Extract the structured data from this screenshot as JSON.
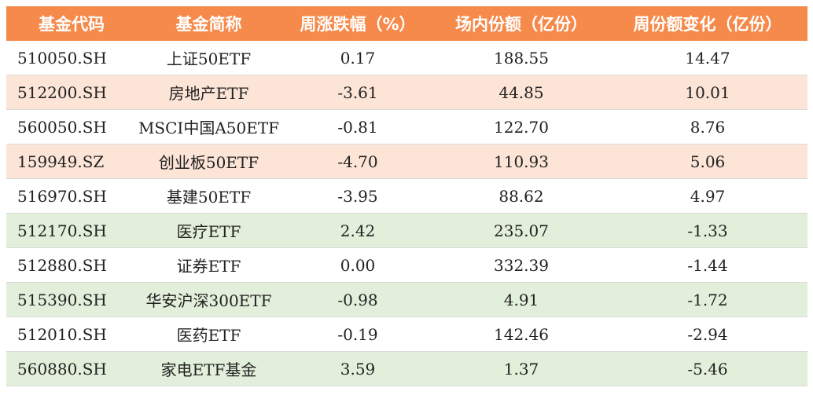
{
  "headers": [
    "基金代码",
    "基金简称",
    "周涨跌幅（%）",
    "场内份额（亿份）",
    "周份额变化（亿份）"
  ],
  "row_colors": {
    "white": "#ffffff",
    "pink": "#fce4d6",
    "green": "#e2efda",
    "header": "#f58a4b"
  },
  "rows": [
    {
      "code": "510050.SH",
      "name": "上证50ETF",
      "weekly_change": "0.17",
      "shares": "188.55",
      "share_change": "14.47",
      "style": "white"
    },
    {
      "code": "512200.SH",
      "name": "房地产ETF",
      "weekly_change": "-3.61",
      "shares": "44.85",
      "share_change": "10.01",
      "style": "pink"
    },
    {
      "code": "560050.SH",
      "name": "MSCI中国A50ETF",
      "weekly_change": "-0.81",
      "shares": "122.70",
      "share_change": "8.76",
      "style": "white"
    },
    {
      "code": "159949.SZ",
      "name": "创业板50ETF",
      "weekly_change": "-4.70",
      "shares": "110.93",
      "share_change": "5.06",
      "style": "pink"
    },
    {
      "code": "516970.SH",
      "name": "基建50ETF",
      "weekly_change": "-3.95",
      "shares": "88.62",
      "share_change": "4.97",
      "style": "white"
    },
    {
      "code": "512170.SH",
      "name": "医疗ETF",
      "weekly_change": "2.42",
      "shares": "235.07",
      "share_change": "-1.33",
      "style": "green"
    },
    {
      "code": "512880.SH",
      "name": "证券ETF",
      "weekly_change": "0.00",
      "shares": "332.39",
      "share_change": "-1.44",
      "style": "white"
    },
    {
      "code": "515390.SH",
      "name": "华安沪深300ETF",
      "weekly_change": "-0.98",
      "shares": "4.91",
      "share_change": "-1.72",
      "style": "green"
    },
    {
      "code": "512010.SH",
      "name": "医药ETF",
      "weekly_change": "-0.19",
      "shares": "142.46",
      "share_change": "-2.94",
      "style": "white"
    },
    {
      "code": "560880.SH",
      "name": "家电ETF基金",
      "weekly_change": "3.59",
      "shares": "1.37",
      "share_change": "-5.46",
      "style": "green"
    }
  ]
}
